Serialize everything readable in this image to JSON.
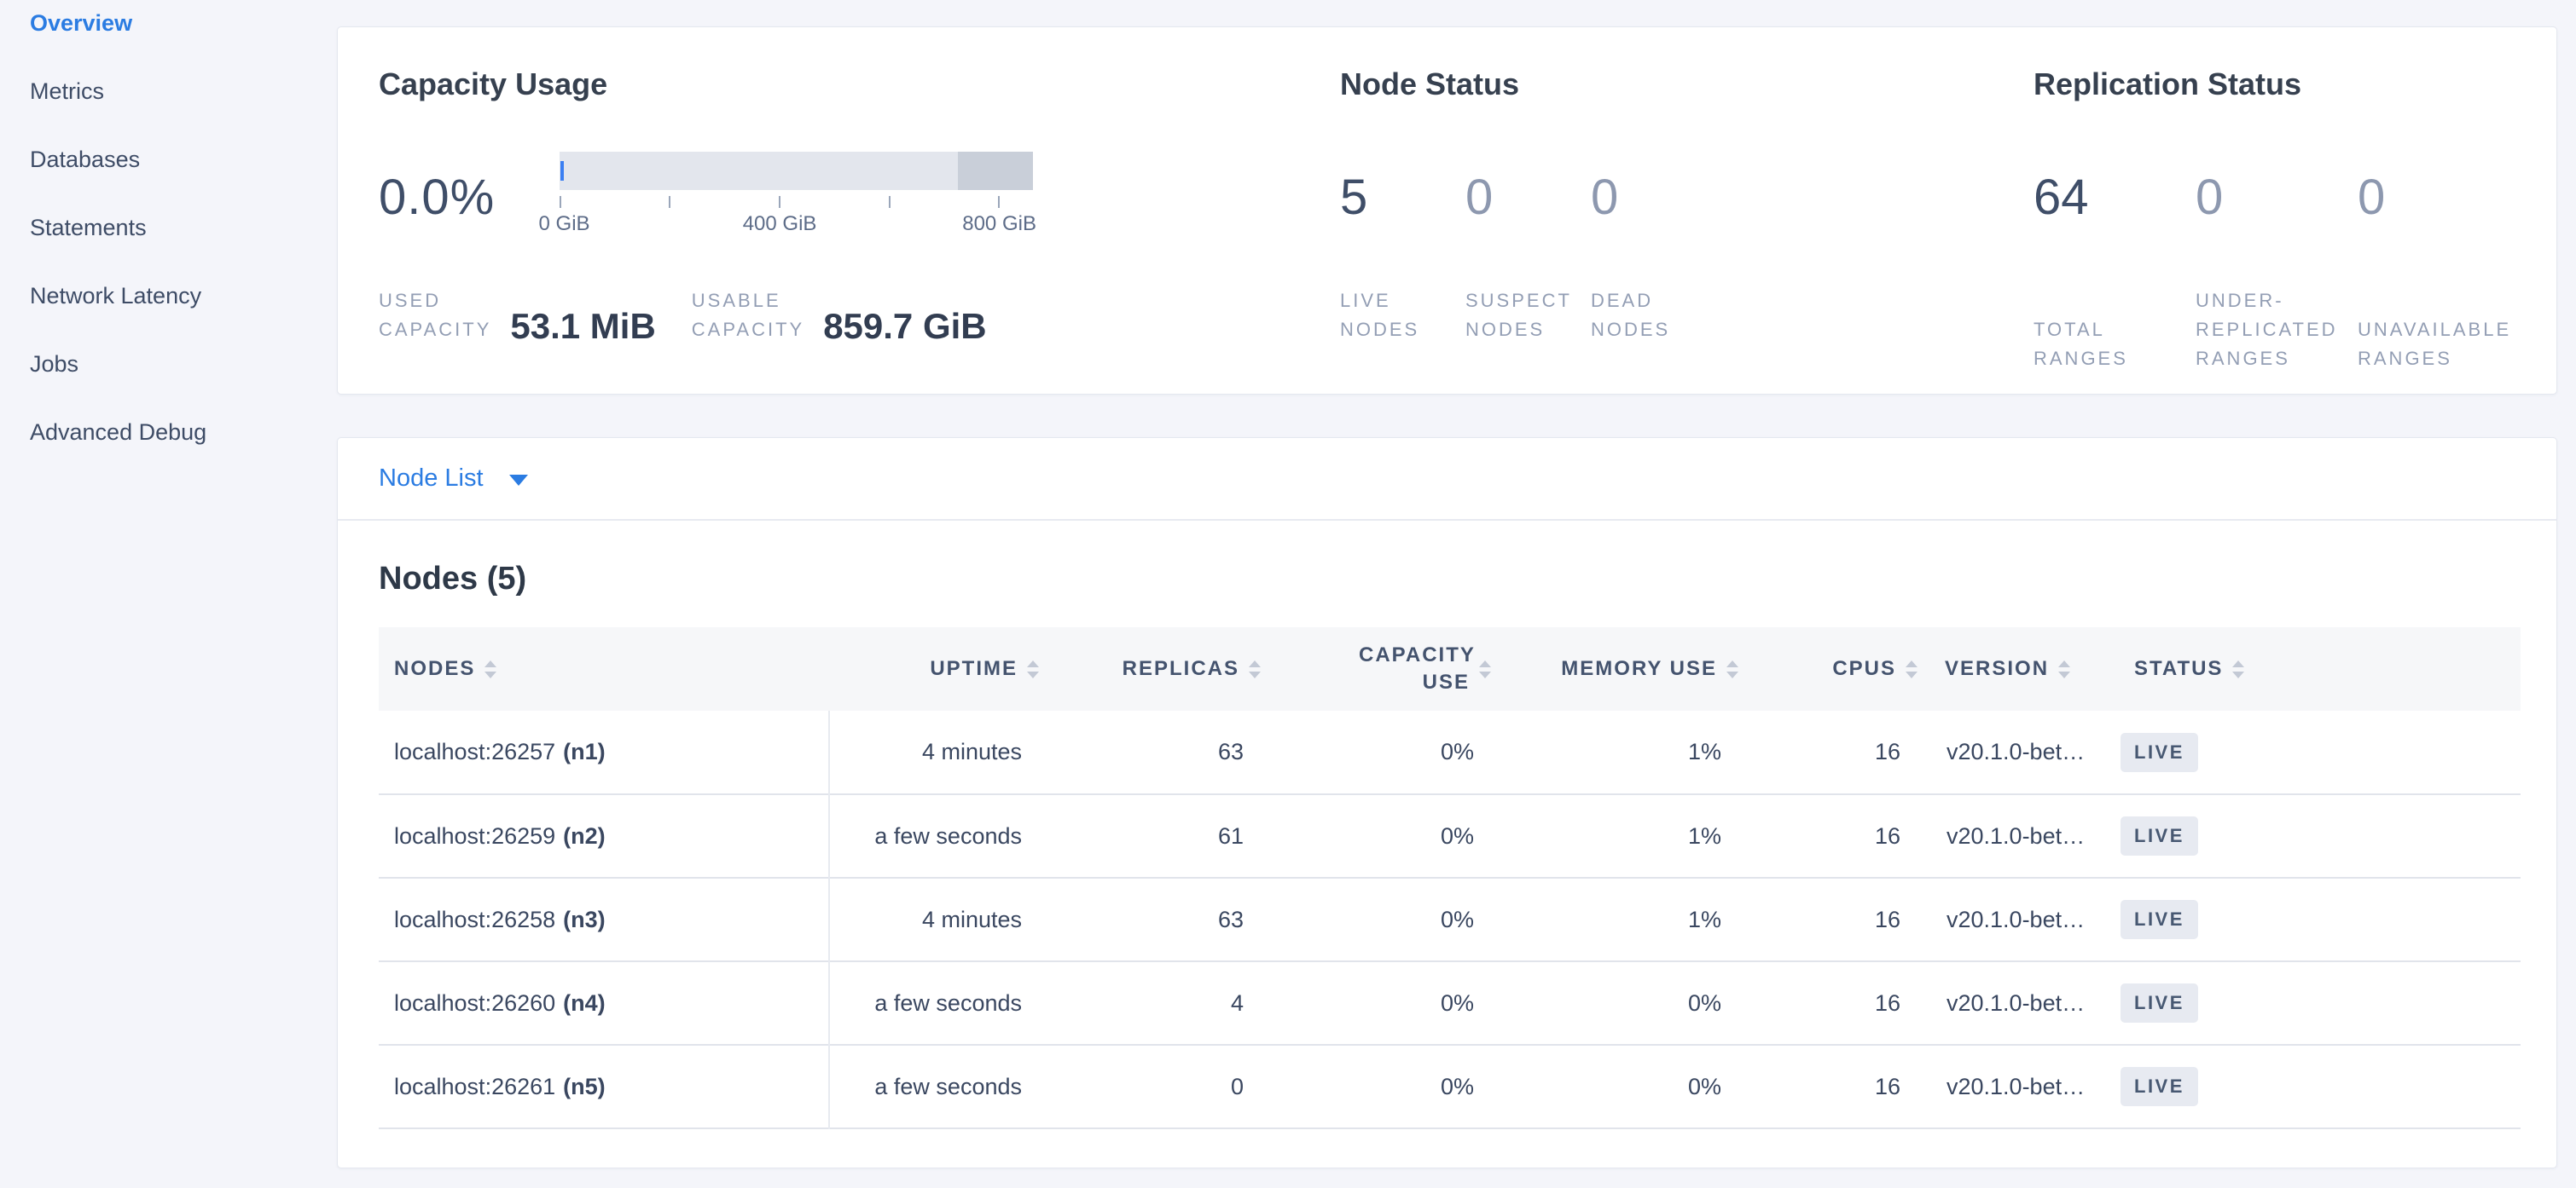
{
  "sidebar": {
    "items": [
      {
        "label": "Overview"
      },
      {
        "label": "Metrics"
      },
      {
        "label": "Databases"
      },
      {
        "label": "Statements"
      },
      {
        "label": "Network Latency"
      },
      {
        "label": "Jobs"
      },
      {
        "label": "Advanced Debug"
      }
    ]
  },
  "panels": {
    "capacity": {
      "title": "Capacity Usage",
      "percent": "0.0%",
      "axis": {
        "tick0": "0 GiB",
        "tick2": "400 GiB",
        "tick4": "800 GiB"
      },
      "used": {
        "lines": [
          "USED",
          "CAPACITY"
        ],
        "value": "53.1 MiB"
      },
      "usable": {
        "lines": [
          "USABLE",
          "CAPACITY"
        ],
        "value": "859.7 GiB"
      }
    },
    "node_status": {
      "title": "Node Status",
      "stats": [
        {
          "value": "5",
          "lines": [
            "LIVE",
            "NODES"
          ]
        },
        {
          "value": "0",
          "lines": [
            "SUSPECT",
            "NODES"
          ]
        },
        {
          "value": "0",
          "lines": [
            "DEAD",
            "NODES"
          ]
        }
      ]
    },
    "replication": {
      "title": "Replication Status",
      "stats": [
        {
          "value": "64",
          "lines": [
            "TOTAL",
            "RANGES"
          ]
        },
        {
          "value": "0",
          "lines": [
            "UNDER-",
            "REPLICATED",
            "RANGES"
          ]
        },
        {
          "value": "0",
          "lines": [
            "UNAVAILABLE",
            "RANGES"
          ]
        }
      ]
    }
  },
  "node_list": {
    "selector_label": "Node List",
    "heading": "Nodes (5)",
    "table": {
      "columns": [
        {
          "label": "NODES"
        },
        {
          "label": "UPTIME"
        },
        {
          "label": "REPLICAS"
        },
        {
          "label": "CAPACITY USE"
        },
        {
          "label": "MEMORY USE"
        },
        {
          "label": "CPUS"
        },
        {
          "label": "VERSION"
        },
        {
          "label": "STATUS"
        }
      ],
      "rows": [
        {
          "address": "localhost:26257",
          "id": "(n1)",
          "uptime": "4 minutes",
          "replicas": "63",
          "capacity_use": "0%",
          "memory_use": "1%",
          "cpus": "16",
          "version": "v20.1.0-bet…",
          "status": "LIVE"
        },
        {
          "address": "localhost:26259",
          "id": "(n2)",
          "uptime": "a few seconds",
          "replicas": "61",
          "capacity_use": "0%",
          "memory_use": "1%",
          "cpus": "16",
          "version": "v20.1.0-bet…",
          "status": "LIVE"
        },
        {
          "address": "localhost:26258",
          "id": "(n3)",
          "uptime": "4 minutes",
          "replicas": "63",
          "capacity_use": "0%",
          "memory_use": "1%",
          "cpus": "16",
          "version": "v20.1.0-bet…",
          "status": "LIVE"
        },
        {
          "address": "localhost:26260",
          "id": "(n4)",
          "uptime": "a few seconds",
          "replicas": "4",
          "capacity_use": "0%",
          "memory_use": "0%",
          "cpus": "16",
          "version": "v20.1.0-bet…",
          "status": "LIVE"
        },
        {
          "address": "localhost:26261",
          "id": "(n5)",
          "uptime": "a few seconds",
          "replicas": "0",
          "capacity_use": "0%",
          "memory_use": "0%",
          "cpus": "16",
          "version": "v20.1.0-bet…",
          "status": "LIVE"
        }
      ]
    }
  },
  "colors": {
    "accent_blue": "#2b7ce2",
    "badge_bg": "#e7eaf1",
    "badge_text": "#475872",
    "gauge_track": "#e3e6ed",
    "gauge_reserved": "#c9cfd9",
    "gauge_used": "#3b7ff2"
  }
}
